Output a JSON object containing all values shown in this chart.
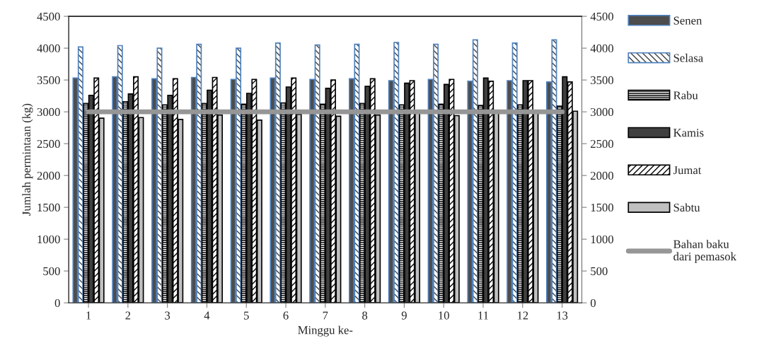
{
  "chart_data": {
    "type": "bar",
    "xlabel": "Minggu ke-",
    "ylabel": "Jumlah permintaan (kg)",
    "categories": [
      "1",
      "2",
      "3",
      "4",
      "5",
      "6",
      "7",
      "8",
      "9",
      "10",
      "11",
      "12",
      "13"
    ],
    "series": [
      {
        "name": "Senen",
        "color": "#4d4d4d",
        "values": [
          3530,
          3550,
          3520,
          3540,
          3510,
          3530,
          3510,
          3520,
          3490,
          3510,
          3480,
          3490,
          3470
        ]
      },
      {
        "name": "Selasa",
        "color": "#4f81bd",
        "values": [
          4020,
          4040,
          4000,
          4060,
          4000,
          4080,
          4050,
          4060,
          4090,
          4060,
          4130,
          4080,
          4130
        ]
      },
      {
        "name": "Rabu",
        "color": "#000000",
        "values": [
          3130,
          3160,
          3110,
          3130,
          3120,
          3140,
          3120,
          3130,
          3110,
          3120,
          3100,
          3110,
          3090
        ]
      },
      {
        "name": "Kamis",
        "color": "#404040",
        "values": [
          3260,
          3280,
          3260,
          3340,
          3290,
          3390,
          3370,
          3400,
          3450,
          3430,
          3530,
          3490,
          3550
        ]
      },
      {
        "name": "Jumat",
        "color": "#000000",
        "values": [
          3530,
          3550,
          3520,
          3540,
          3510,
          3530,
          3500,
          3520,
          3490,
          3510,
          3480,
          3490,
          3470
        ]
      },
      {
        "name": "Sabtu",
        "color": "#c0c0c0",
        "values": [
          2900,
          2910,
          2880,
          2950,
          2870,
          2960,
          2930,
          2950,
          2990,
          2940,
          2980,
          2990,
          3010
        ]
      },
      {
        "name": "Bahan baku\ndari pemasok",
        "type": "line",
        "color": "#969696",
        "values": [
          3000,
          3000,
          3000,
          3000,
          3000,
          3000,
          3000,
          3000,
          3000,
          3000,
          3000,
          3000,
          3000
        ]
      }
    ],
    "ylim": [
      0,
      4500
    ],
    "yticks": [
      0,
      500,
      1000,
      1500,
      2000,
      2500,
      3000,
      3500,
      4000,
      4500
    ],
    "y2lim": [
      0,
      4500
    ],
    "y2ticks": [
      0,
      500,
      1000,
      1500,
      2000,
      2500,
      3000,
      3500,
      4000,
      4500
    ],
    "grid": false,
    "legend": "right"
  }
}
